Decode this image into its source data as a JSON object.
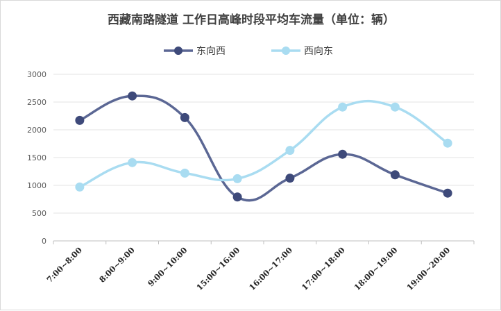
{
  "chart_data": {
    "type": "line",
    "title": "西藏南路隧道 工作日高峰时段平均车流量（单位：辆）",
    "categories": [
      "7:00~8:00",
      "8:00~9:00",
      "9:00~10:00",
      "15:00~16:00",
      "16:00~17:00",
      "17:00~18:00",
      "18:00~19:00",
      "19:00~20:00"
    ],
    "series": [
      {
        "name": "东向西",
        "color": "#5b6794",
        "marker_color": "#3e4a7a",
        "values": [
          2170,
          2610,
          2220,
          790,
          1130,
          1560,
          1190,
          860
        ]
      },
      {
        "name": "西向东",
        "color": "#a9dcf1",
        "marker_color": "#a9dcf1",
        "values": [
          970,
          1410,
          1220,
          1120,
          1630,
          2410,
          2410,
          1760
        ]
      }
    ],
    "ylim": [
      0,
      3000
    ],
    "yticks": [
      0,
      500,
      1000,
      1500,
      2000,
      2500,
      3000
    ],
    "xlabel": "",
    "ylabel": "",
    "grid": true,
    "smooth": true,
    "legend_position": "top"
  }
}
